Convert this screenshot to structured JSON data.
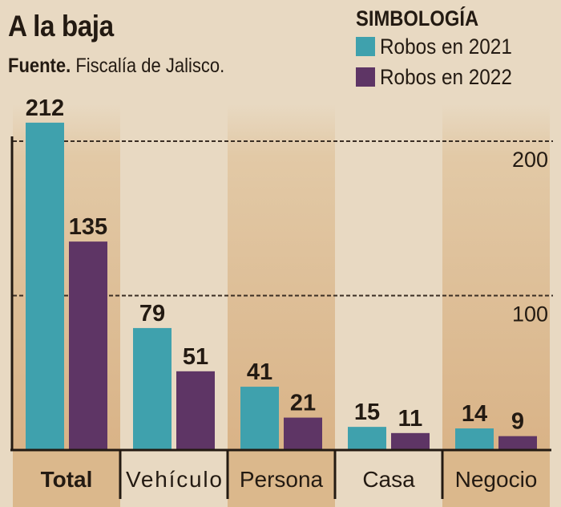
{
  "header": {
    "title": "A la baja",
    "source_label": "Fuente.",
    "source_text": "Fiscalía de Jalisco."
  },
  "chart_data": {
    "type": "bar",
    "title": "A la baja",
    "categories": [
      "Total",
      "Vehículo",
      "Persona",
      "Casa",
      "Negocio"
    ],
    "series": [
      {
        "name": "Robos en 2021",
        "color": "#3fa1ad",
        "values": [
          212,
          79,
          41,
          15,
          14
        ]
      },
      {
        "name": "Robos en 2022",
        "color": "#5e3565",
        "values": [
          135,
          51,
          21,
          11,
          9
        ]
      }
    ],
    "legend_title": "SIMBOLOGÍA",
    "legend_position": "top-right",
    "yticks": [
      "100",
      "200"
    ],
    "ytick_values": [
      100,
      200
    ],
    "ylim": [
      0,
      220
    ],
    "grid": true,
    "xlabel": "",
    "ylabel": ""
  },
  "colors": {
    "background": "#e8d9c2",
    "band": "#dbb88c",
    "text": "#231a12"
  }
}
